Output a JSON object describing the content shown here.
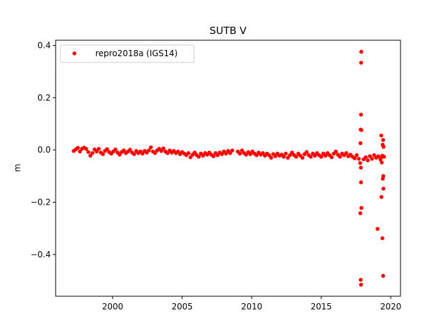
{
  "chart_data": {
    "type": "scatter",
    "title": "SUTB V",
    "xlabel": "",
    "ylabel": "m",
    "xlim": [
      1995.9,
      2020.7
    ],
    "ylim": [
      -0.56,
      0.42
    ],
    "xticks": [
      2000,
      2005,
      2010,
      2015,
      2020
    ],
    "xtick_labels": [
      "2000",
      "2005",
      "2010",
      "2015",
      "2020"
    ],
    "yticks": [
      0.4,
      0.2,
      0.0,
      -0.2,
      -0.4
    ],
    "ytick_labels": [
      "0.4",
      "0.2",
      "0.0",
      "−0.2",
      "−0.4"
    ],
    "grid": false,
    "legend": {
      "placement": "top-left",
      "entries": [
        "repro2018a (IGS14)"
      ]
    },
    "colors": {
      "series": "#ff0000"
    },
    "series": [
      {
        "name": "repro2018a (IGS14)",
        "marker": "circle",
        "color": "#ff0000",
        "points": [
          [
            1997.2,
            -0.004
          ],
          [
            1997.35,
            0.002
          ],
          [
            1997.5,
            0.008
          ],
          [
            1997.65,
            -0.006
          ],
          [
            1997.8,
            0.005
          ],
          [
            1997.95,
            0.009
          ],
          [
            1998.1,
            0.004
          ],
          [
            1998.25,
            -0.008
          ],
          [
            1998.4,
            -0.022
          ],
          [
            1998.55,
            -0.012
          ],
          [
            1998.7,
            0.002
          ],
          [
            1998.85,
            -0.006
          ],
          [
            1999.0,
            0.004
          ],
          [
            1999.15,
            -0.01
          ],
          [
            1999.3,
            -0.016
          ],
          [
            1999.45,
            -0.004
          ],
          [
            1999.6,
            0.003
          ],
          [
            1999.75,
            -0.008
          ],
          [
            1999.9,
            -0.014
          ],
          [
            2000.05,
            -0.006
          ],
          [
            2000.2,
            0.002
          ],
          [
            2000.35,
            -0.01
          ],
          [
            2000.5,
            -0.018
          ],
          [
            2000.65,
            -0.008
          ],
          [
            2000.8,
            -0.002
          ],
          [
            2000.95,
            -0.012
          ],
          [
            2001.1,
            -0.006
          ],
          [
            2001.25,
            0.001
          ],
          [
            2001.4,
            -0.01
          ],
          [
            2001.55,
            -0.016
          ],
          [
            2001.7,
            -0.004
          ],
          [
            2001.85,
            -0.012
          ],
          [
            2002.0,
            -0.006
          ],
          [
            2002.15,
            -0.014
          ],
          [
            2002.3,
            -0.004
          ],
          [
            2002.45,
            -0.01
          ],
          [
            2002.6,
            -0.002
          ],
          [
            2002.75,
            0.01
          ],
          [
            2002.9,
            -0.006
          ],
          [
            2003.05,
            -0.012
          ],
          [
            2003.2,
            -0.002
          ],
          [
            2003.35,
            0.004
          ],
          [
            2003.5,
            -0.004
          ],
          [
            2003.65,
            0.006
          ],
          [
            2003.8,
            -0.006
          ],
          [
            2003.95,
            -0.012
          ],
          [
            2004.1,
            -0.002
          ],
          [
            2004.25,
            -0.01
          ],
          [
            2004.4,
            -0.004
          ],
          [
            2004.55,
            -0.012
          ],
          [
            2004.7,
            -0.006
          ],
          [
            2004.85,
            -0.016
          ],
          [
            2005.0,
            -0.008
          ],
          [
            2005.15,
            -0.014
          ],
          [
            2005.3,
            -0.02
          ],
          [
            2005.45,
            -0.012
          ],
          [
            2005.6,
            -0.028
          ],
          [
            2005.75,
            -0.018
          ],
          [
            2005.9,
            -0.01
          ],
          [
            2006.05,
            -0.02
          ],
          [
            2006.2,
            -0.026
          ],
          [
            2006.35,
            -0.014
          ],
          [
            2006.5,
            -0.022
          ],
          [
            2006.65,
            -0.012
          ],
          [
            2006.8,
            -0.018
          ],
          [
            2006.95,
            -0.01
          ],
          [
            2007.1,
            -0.018
          ],
          [
            2007.25,
            -0.024
          ],
          [
            2007.4,
            -0.012
          ],
          [
            2007.55,
            -0.02
          ],
          [
            2007.7,
            -0.01
          ],
          [
            2007.85,
            -0.016
          ],
          [
            2008.0,
            -0.006
          ],
          [
            2008.15,
            -0.014
          ],
          [
            2008.3,
            -0.004
          ],
          [
            2008.45,
            -0.012
          ],
          [
            2008.6,
            -0.002
          ],
          [
            2009.0,
            -0.006
          ],
          [
            2009.15,
            -0.014
          ],
          [
            2009.3,
            -0.002
          ],
          [
            2009.45,
            -0.012
          ],
          [
            2009.6,
            -0.018
          ],
          [
            2009.75,
            -0.008
          ],
          [
            2009.9,
            -0.016
          ],
          [
            2010.05,
            -0.006
          ],
          [
            2010.2,
            -0.014
          ],
          [
            2010.35,
            -0.02
          ],
          [
            2010.5,
            -0.01
          ],
          [
            2010.65,
            -0.018
          ],
          [
            2010.8,
            -0.012
          ],
          [
            2010.95,
            -0.022
          ],
          [
            2011.1,
            -0.014
          ],
          [
            2011.25,
            -0.02
          ],
          [
            2011.4,
            -0.03
          ],
          [
            2011.55,
            -0.016
          ],
          [
            2011.7,
            -0.024
          ],
          [
            2011.85,
            -0.014
          ],
          [
            2012.0,
            -0.022
          ],
          [
            2012.15,
            -0.018
          ],
          [
            2012.3,
            -0.026
          ],
          [
            2012.45,
            -0.014
          ],
          [
            2012.6,
            -0.03
          ],
          [
            2012.75,
            -0.02
          ],
          [
            2012.9,
            -0.01
          ],
          [
            2013.05,
            -0.02
          ],
          [
            2013.2,
            -0.026
          ],
          [
            2013.35,
            -0.014
          ],
          [
            2013.5,
            -0.022
          ],
          [
            2013.65,
            -0.03
          ],
          [
            2013.8,
            -0.016
          ],
          [
            2013.95,
            -0.008
          ],
          [
            2014.1,
            -0.02
          ],
          [
            2014.25,
            -0.026
          ],
          [
            2014.4,
            -0.014
          ],
          [
            2014.55,
            -0.022
          ],
          [
            2014.7,
            -0.012
          ],
          [
            2014.85,
            -0.02
          ],
          [
            2015.0,
            -0.026
          ],
          [
            2015.15,
            -0.014
          ],
          [
            2015.3,
            -0.022
          ],
          [
            2015.45,
            -0.012
          ],
          [
            2015.6,
            -0.02
          ],
          [
            2015.75,
            -0.028
          ],
          [
            2015.9,
            -0.014
          ],
          [
            2016.05,
            -0.006
          ],
          [
            2016.2,
            -0.018
          ],
          [
            2016.35,
            -0.026
          ],
          [
            2016.5,
            -0.014
          ],
          [
            2016.65,
            -0.02
          ],
          [
            2016.8,
            -0.012
          ],
          [
            2016.95,
            -0.024
          ],
          [
            2017.1,
            -0.018
          ],
          [
            2017.25,
            -0.026
          ],
          [
            2017.4,
            -0.032
          ],
          [
            2017.55,
            -0.02
          ],
          [
            2017.7,
            -0.034
          ],
          [
            2017.8,
            -0.05
          ],
          [
            2017.82,
            0.026
          ],
          [
            2017.84,
            0.078
          ],
          [
            2017.86,
            0.135
          ],
          [
            2017.87,
            0.334
          ],
          [
            2017.88,
            0.376
          ],
          [
            2017.89,
            0.076
          ],
          [
            2017.85,
            -0.068
          ],
          [
            2017.86,
            -0.124
          ],
          [
            2017.89,
            -0.222
          ],
          [
            2017.81,
            -0.242
          ],
          [
            2017.84,
            -0.497
          ],
          [
            2017.86,
            -0.516
          ],
          [
            2018.05,
            -0.036
          ],
          [
            2018.2,
            -0.028
          ],
          [
            2018.35,
            -0.04
          ],
          [
            2018.5,
            -0.024
          ],
          [
            2018.65,
            -0.034
          ],
          [
            2018.8,
            -0.02
          ],
          [
            2018.95,
            -0.03
          ],
          [
            2019.1,
            -0.024
          ],
          [
            2019.25,
            -0.036
          ],
          [
            2019.3,
            -0.03
          ],
          [
            2019.35,
            -0.048
          ],
          [
            2019.32,
            0.055
          ],
          [
            2019.45,
            0.038
          ],
          [
            2019.42,
            0.02
          ],
          [
            2019.48,
            0.012
          ],
          [
            2019.4,
            -0.022
          ],
          [
            2019.52,
            -0.026
          ],
          [
            2019.46,
            -0.1
          ],
          [
            2019.43,
            -0.11
          ],
          [
            2019.47,
            -0.148
          ],
          [
            2019.33,
            -0.18
          ],
          [
            2019.05,
            -0.302
          ],
          [
            2019.4,
            -0.338
          ],
          [
            2019.45,
            -0.482
          ]
        ]
      }
    ]
  }
}
